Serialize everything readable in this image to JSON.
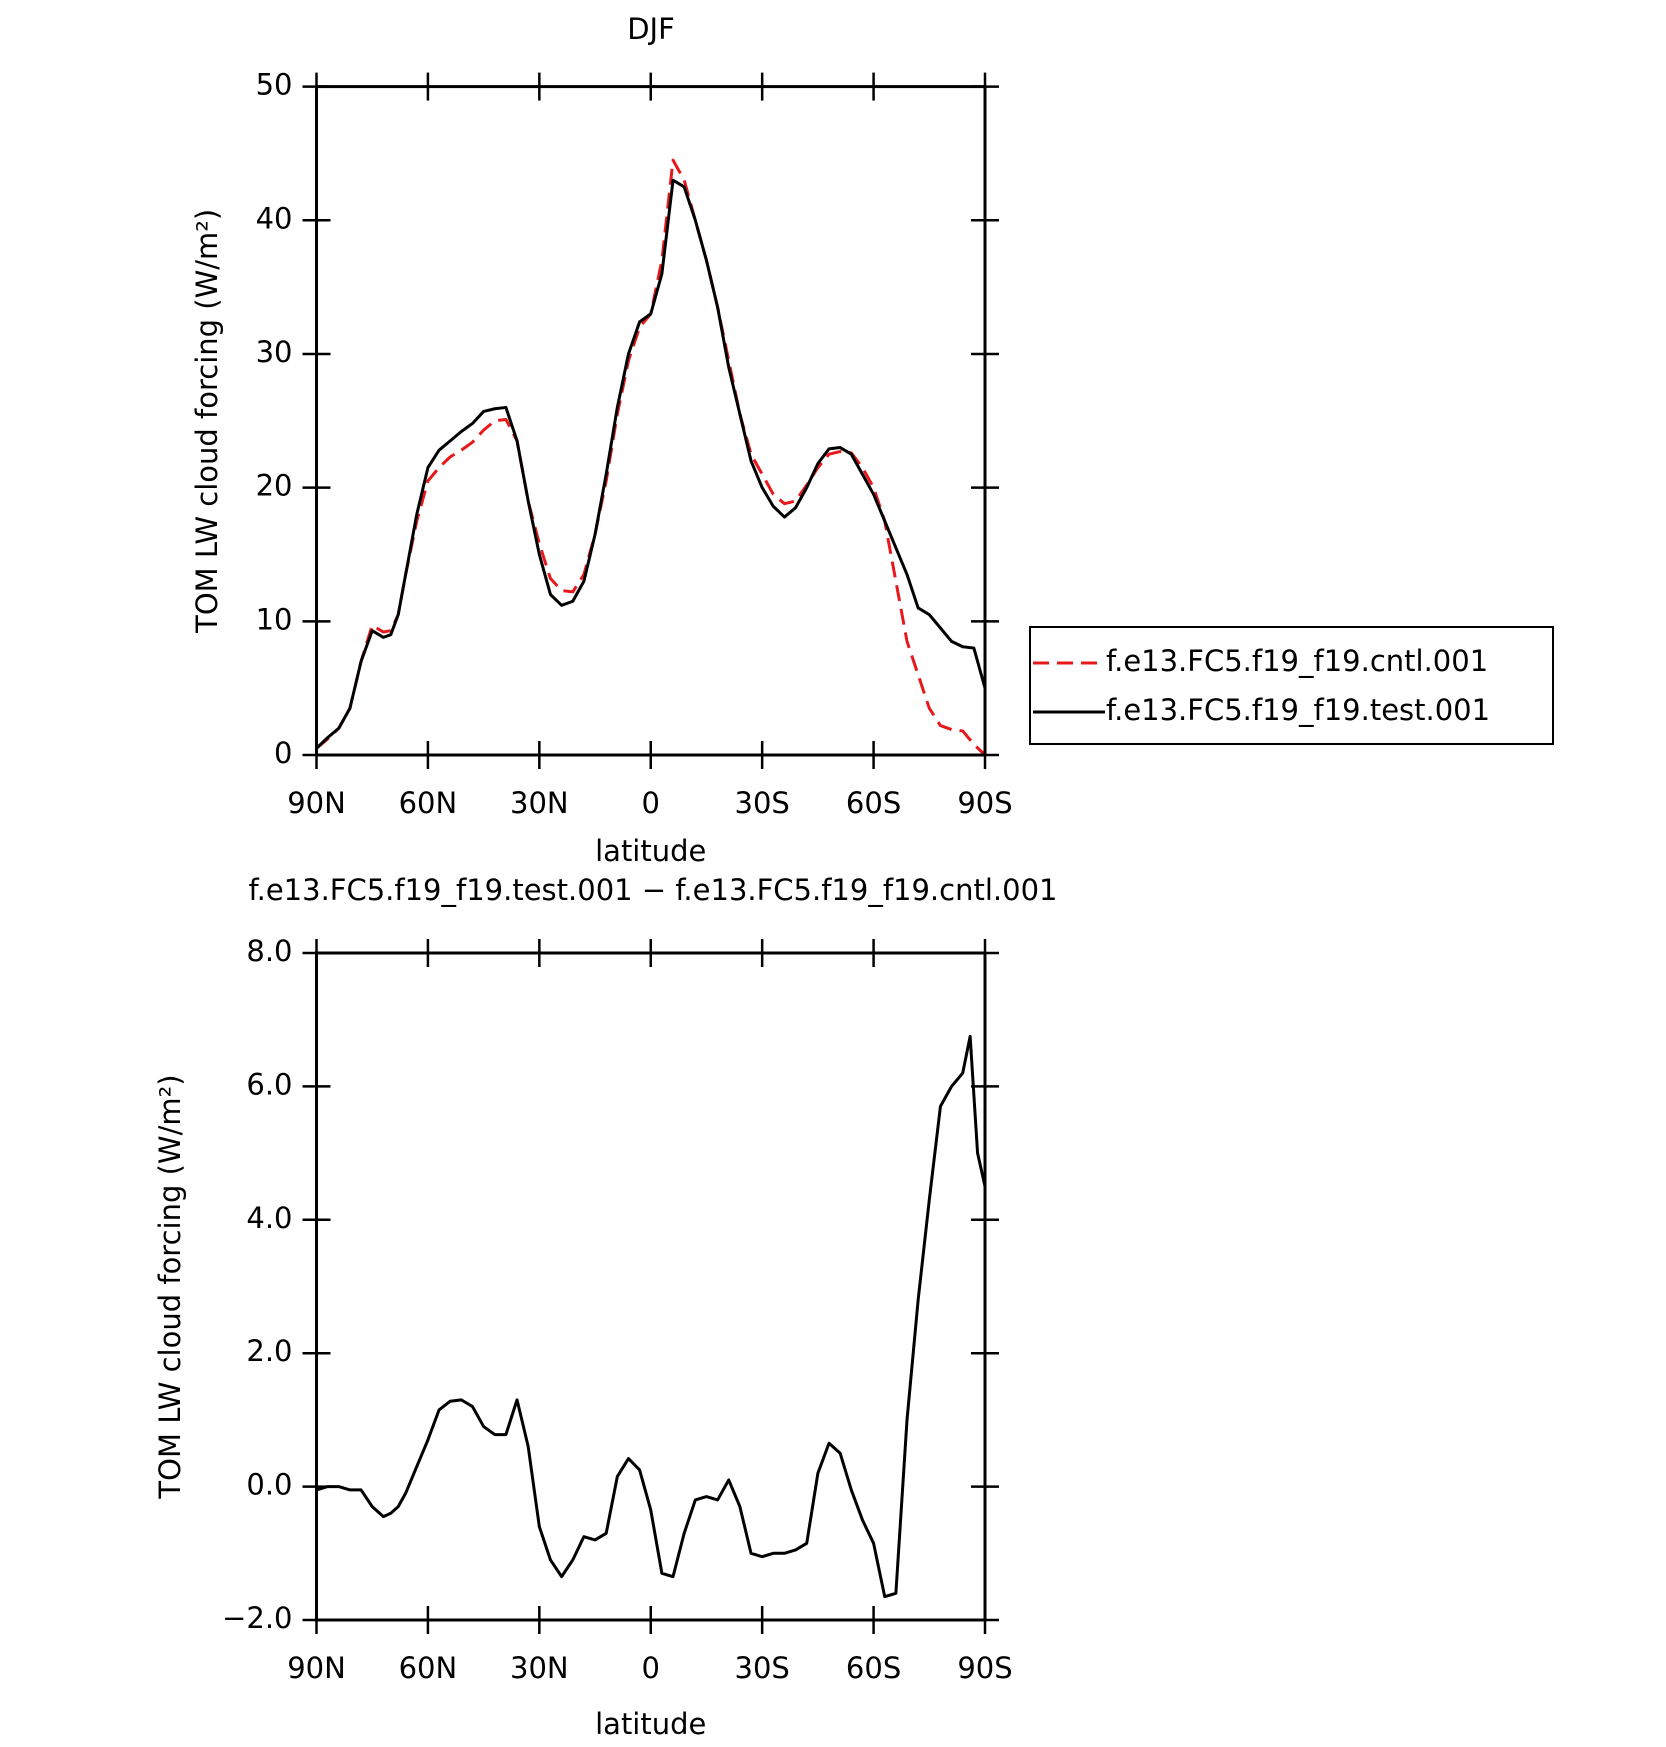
{
  "chart_data": [
    {
      "type": "line",
      "title": "DJF",
      "xlabel": "latitude",
      "ylabel": "TOM LW cloud forcing (W/m²)",
      "x": [
        90,
        87,
        84,
        81,
        78,
        75,
        72,
        70,
        68,
        66,
        63,
        60,
        57,
        54,
        51,
        48,
        45,
        42,
        39,
        36,
        33,
        30,
        27,
        24,
        21,
        18,
        15,
        12,
        9,
        6,
        3,
        0,
        -3,
        -6,
        -9,
        -12,
        -15,
        -18,
        -21,
        -24,
        -27,
        -30,
        -33,
        -36,
        -39,
        -42,
        -45,
        -48,
        -51,
        -54,
        -57,
        -60,
        -63,
        -66,
        -69,
        -72,
        -75,
        -78,
        -81,
        -84,
        -87,
        -90
      ],
      "series": [
        {
          "name": "f.e13.FC5.f19_f19.cntl.001",
          "color": "#e8191c",
          "linestyle": "dashed",
          "values": [
            0.5,
            1.2,
            2,
            3.5,
            7,
            9.7,
            9.2,
            9.3,
            10.5,
            13.5,
            17.5,
            20.5,
            21.5,
            22.3,
            22.8,
            23.4,
            24.3,
            25,
            25.1,
            23.5,
            19,
            15.8,
            13.2,
            12.3,
            12.2,
            13.5,
            16.5,
            20.5,
            25.5,
            29.5,
            32,
            33,
            37,
            44.5,
            43,
            40,
            37,
            33.5,
            29.5,
            25.5,
            22.5,
            21,
            19.5,
            18.8,
            19,
            20.2,
            21.5,
            22.5,
            22.7,
            22.6,
            21.5,
            20,
            17.5,
            13,
            8.5,
            6,
            3.5,
            2.2,
            1.9,
            1.8,
            0.8,
            0
          ]
        },
        {
          "name": "f.e13.FC5.f19_f19.test.001",
          "color": "#000000",
          "linestyle": "solid",
          "values": [
            0.5,
            1.3,
            2,
            3.5,
            7,
            9.3,
            8.8,
            9,
            10.5,
            13.5,
            18,
            21.5,
            22.8,
            23.5,
            24.2,
            24.8,
            25.7,
            25.9,
            26,
            23.5,
            19,
            15,
            12,
            11.2,
            11.5,
            13,
            16.5,
            21,
            26,
            30,
            32.4,
            33,
            36,
            43,
            42.5,
            40,
            37,
            33.5,
            29,
            25.5,
            22,
            20,
            18.6,
            17.8,
            18.5,
            20,
            21.8,
            22.9,
            23,
            22.5,
            21,
            19.5,
            17.5,
            15.5,
            13.5,
            11,
            10.5,
            9.5,
            8.5,
            8.1,
            8,
            5
          ]
        }
      ],
      "xlim": [
        90,
        -90
      ],
      "xticks": [
        {
          "value": 90,
          "label": "90N"
        },
        {
          "value": 60,
          "label": "60N"
        },
        {
          "value": 30,
          "label": "30N"
        },
        0,
        {
          "value": -30,
          "label": "30S"
        },
        {
          "value": -60,
          "label": "60S"
        },
        {
          "value": -90,
          "label": "90S"
        }
      ],
      "ylim": [
        0,
        50
      ],
      "yticks": [
        0,
        10,
        20,
        30,
        40,
        50
      ],
      "legend": "outside-right"
    },
    {
      "type": "line",
      "title": "f.e13.FC5.f19_f19.test.001 − f.e13.FC5.f19_f19.cntl.001",
      "xlabel": "latitude",
      "ylabel": "TOM LW cloud forcing (W/m²)",
      "x": [
        90,
        87,
        84,
        81,
        78,
        75,
        72,
        70,
        68,
        66,
        63,
        60,
        57,
        54,
        51,
        48,
        45,
        42,
        39,
        36,
        33,
        30,
        27,
        24,
        21,
        18,
        15,
        12,
        9,
        6,
        3,
        0,
        -3,
        -6,
        -9,
        -12,
        -15,
        -18,
        -21,
        -24,
        -27,
        -30,
        -33,
        -36,
        -39,
        -42,
        -45,
        -48,
        -51,
        -54,
        -57,
        -60,
        -63,
        -66,
        -69,
        -72,
        -75,
        -78,
        -81,
        -84,
        -86,
        -88,
        -90
      ],
      "values": [
        -0.05,
        0,
        0,
        -0.05,
        -0.05,
        -0.3,
        -0.45,
        -0.4,
        -0.3,
        -0.1,
        0.3,
        0.7,
        1.15,
        1.28,
        1.3,
        1.2,
        0.9,
        0.78,
        0.78,
        1.3,
        0.6,
        -0.6,
        -1.1,
        -1.35,
        -1.1,
        -0.75,
        -0.8,
        -0.7,
        0.15,
        0.42,
        0.25,
        -0.35,
        -1.3,
        -1.35,
        -0.7,
        -0.2,
        -0.15,
        -0.2,
        0.1,
        -0.3,
        -1.0,
        -1.05,
        -1.0,
        -1.0,
        -0.95,
        -0.85,
        0.2,
        0.65,
        0.5,
        -0.05,
        -0.5,
        -0.85,
        -1.65,
        -1.6,
        1.0,
        2.8,
        4.3,
        5.7,
        6.0,
        6.2,
        6.75,
        5.0,
        4.5
      ],
      "color": "#000000",
      "linestyle": "solid",
      "xlim": [
        90,
        -90
      ],
      "xticks": [
        {
          "value": 90,
          "label": "90N"
        },
        {
          "value": 60,
          "label": "60N"
        },
        {
          "value": 30,
          "label": "30N"
        },
        0,
        {
          "value": -30,
          "label": "30S"
        },
        {
          "value": -60,
          "label": "60S"
        },
        {
          "value": -90,
          "label": "90S"
        }
      ],
      "ylim": [
        -2,
        8
      ],
      "yticks": [
        {
          "value": -2,
          "label": "−2.0"
        },
        {
          "value": 0,
          "label": "0.0"
        },
        {
          "value": 2,
          "label": "2.0"
        },
        {
          "value": 4,
          "label": "4.0"
        },
        {
          "value": 6,
          "label": "6.0"
        },
        {
          "value": 8,
          "label": "8.0"
        }
      ]
    }
  ]
}
